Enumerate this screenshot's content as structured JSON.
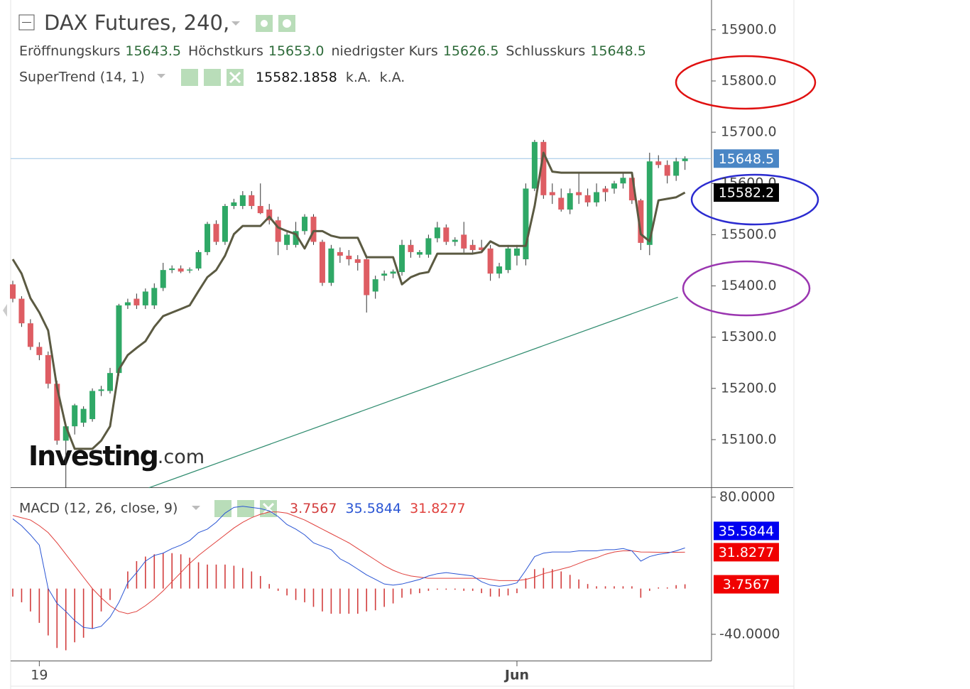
{
  "chart_data": [
    {
      "type": "candlestick",
      "title": "DAX Futures, 240,",
      "legend_fields": [
        "Eröffnungskurs",
        "Höchstkurs",
        "niedrigster Kurs",
        "Schlusskurs"
      ],
      "legend_values": [
        "15643.5",
        "15653.0",
        "15626.5",
        "15648.5"
      ],
      "watermark": {
        "brand": "Investing",
        "suffix": ".com"
      },
      "up_color": "#2fa866",
      "down_color": "#de5d63",
      "wick_color": "#333333",
      "price_line_color": "#9cc3e6",
      "xlim": [
        -0.24,
        79
      ],
      "xticks": [
        {
          "value": 3,
          "label": "19"
        },
        {
          "value": 57,
          "label": "Jun"
        }
      ],
      "ylim": [
        15007,
        15958
      ],
      "yticks": [
        {
          "value": 15100,
          "label": "15100.0"
        },
        {
          "value": 15200,
          "label": "15200.0"
        },
        {
          "value": 15300,
          "label": "15300.0"
        },
        {
          "value": 15400,
          "label": "15400.0"
        },
        {
          "value": 15500,
          "label": "15500.0"
        },
        {
          "value": 15600,
          "label": "15600.0"
        },
        {
          "value": 15700,
          "label": "15700.0"
        },
        {
          "value": 15800,
          "label": "15800.0"
        },
        {
          "value": 15900,
          "label": "15900.0"
        }
      ],
      "open": [
        15403,
        15375,
        15327,
        15281,
        15265,
        15209,
        15098,
        15126,
        15133,
        15140,
        15195,
        15195,
        15230,
        15362,
        15375,
        15362,
        15362,
        15396,
        15431,
        15434,
        15430,
        15434,
        15466,
        15521,
        15486,
        15556,
        15556,
        15577,
        15556,
        15549,
        15528,
        15480,
        15480,
        15507,
        15535,
        15486,
        15406,
        15466,
        15459,
        15452,
        15452,
        15389,
        15420,
        15424,
        15427,
        15480,
        15461,
        15461,
        15493,
        15514,
        15486,
        15500,
        15480,
        15475,
        15473,
        15424,
        15431,
        15459,
        15452,
        15590,
        15681,
        15583,
        15572,
        15549,
        15583,
        15577,
        15563,
        15590,
        15590,
        15600,
        15611,
        15567,
        15480,
        15643,
        15636,
        15615,
        15643.5
      ],
      "high": [
        15410,
        15380,
        15335,
        15290,
        15272,
        15215,
        15130,
        15170,
        15165,
        15200,
        15205,
        15240,
        15365,
        15375,
        15385,
        15395,
        15405,
        15445,
        15440,
        15440,
        15436,
        15470,
        15525,
        15528,
        15560,
        15570,
        15585,
        15585,
        15600,
        15560,
        15535,
        15505,
        15525,
        15540,
        15540,
        15490,
        15480,
        15475,
        15470,
        15460,
        15460,
        15420,
        15430,
        15432,
        15490,
        15490,
        15470,
        15500,
        15525,
        15520,
        15495,
        15525,
        15490,
        15490,
        15480,
        15445,
        15480,
        15480,
        15600,
        15685,
        15685,
        15600,
        15590,
        15590,
        15620,
        15590,
        15600,
        15595,
        15605,
        15620,
        15615,
        15570,
        15660,
        15655,
        15645,
        15650,
        15653
      ],
      "low": [
        15368,
        15320,
        15275,
        15255,
        15200,
        15090,
        15006,
        15110,
        15125,
        15135,
        15185,
        15190,
        15225,
        15355,
        15355,
        15355,
        15355,
        15390,
        15425,
        15425,
        15425,
        15430,
        15460,
        15480,
        15480,
        15550,
        15550,
        15550,
        15540,
        15520,
        15460,
        15470,
        15475,
        15500,
        15480,
        15400,
        15400,
        15445,
        15440,
        15430,
        15348,
        15375,
        15410,
        15415,
        15420,
        15455,
        15455,
        15455,
        15485,
        15480,
        15478,
        15465,
        15465,
        15465,
        15410,
        15415,
        15425,
        15440,
        15440,
        15585,
        15570,
        15560,
        15545,
        15540,
        15560,
        15555,
        15555,
        15565,
        15580,
        15590,
        15560,
        15470,
        15460,
        15630,
        15600,
        15605,
        15626.5
      ],
      "close": [
        15375,
        15327,
        15281,
        15265,
        15209,
        15098,
        15126,
        15167,
        15160,
        15195,
        15198,
        15230,
        15362,
        15368,
        15362,
        15389,
        15396,
        15431,
        15434,
        15428,
        15432,
        15466,
        15521,
        15486,
        15556,
        15563,
        15577,
        15556,
        15542,
        15528,
        15486,
        15500,
        15507,
        15535,
        15486,
        15406,
        15473,
        15459,
        15452,
        15445,
        15382,
        15413,
        15424,
        15428,
        15480,
        15466,
        15466,
        15493,
        15514,
        15486,
        15490,
        15473,
        15470,
        15470,
        15424,
        15438,
        15473,
        15473,
        15590,
        15681,
        15577,
        15577,
        15549,
        15581,
        15577,
        15563,
        15583,
        15583,
        15600,
        15611,
        15567,
        15484,
        15643,
        15636,
        15615,
        15643,
        15648.5
      ],
      "overlays": [
        {
          "name": "SuperTrend (14, 1)",
          "color": "#5b5a42",
          "values": [
            15452,
            15424,
            15376,
            15348,
            15313,
            15202,
            15126,
            15082,
            15082,
            15082,
            15098,
            15126,
            15237,
            15265,
            15279,
            15292,
            15320,
            15341,
            15348,
            15355,
            15362,
            15390,
            15417,
            15431,
            15459,
            15501,
            15517,
            15517,
            15517,
            15535,
            15514,
            15507,
            15501,
            15473,
            15507,
            15507,
            15498,
            15494,
            15494,
            15494,
            15456,
            15456,
            15456,
            15456,
            15403,
            15417,
            15424,
            15427,
            15463,
            15463,
            15463,
            15463,
            15463,
            15466,
            15487,
            15478,
            15478,
            15478,
            15478,
            15556,
            15660,
            15623,
            15621,
            15621,
            15621,
            15621,
            15621,
            15621,
            15621,
            15621,
            15621,
            15501,
            15487,
            15567,
            15570,
            15573,
            15582.1858
          ],
          "status": [
            "k.A.",
            "k.A."
          ],
          "last_label": "15582.2"
        }
      ],
      "trendline": {
        "color": "#2e8b6e",
        "x": [
          15.4,
          75.2
        ],
        "y": [
          15006,
          15378
        ]
      }
    },
    {
      "type": "macd",
      "title": "MACD (12, 26, close, 9)",
      "xlim": [
        -0.24,
        79
      ],
      "ylim": [
        -63,
        88
      ],
      "yticks": [
        {
          "value": 80,
          "label": "80.0000"
        },
        {
          "value": -40,
          "label": "-40.0000"
        }
      ],
      "histogram": {
        "color": "#d23c3c",
        "values": [
          -7,
          -12,
          -20,
          -30,
          -41,
          -52,
          -54,
          -47,
          -43,
          -35,
          -20,
          -10,
          0,
          15,
          24,
          28,
          30,
          31,
          31,
          30,
          27,
          23,
          21,
          21,
          21,
          20,
          18,
          15,
          11,
          4,
          -2,
          -6,
          -10,
          -12,
          -16,
          -20,
          -22,
          -22,
          -22,
          -22,
          -20,
          -19,
          -16,
          -13,
          -8,
          -5,
          -4,
          -2,
          -1,
          -1,
          -1,
          -2,
          -2,
          -4,
          -7,
          -7,
          -6,
          -4,
          9,
          17,
          18,
          17,
          15,
          12,
          8,
          4,
          2,
          2,
          2,
          2,
          2,
          -8,
          -2,
          1,
          1,
          3,
          3.7567
        ]
      },
      "macd": {
        "color": "#2a55d4",
        "values": [
          61,
          55,
          47,
          38,
          0,
          -13,
          -20,
          -28,
          -34,
          -35,
          -33,
          -25,
          -12,
          5,
          14,
          24,
          29,
          31,
          35,
          38,
          42,
          49,
          52,
          58,
          66,
          71,
          72,
          71,
          70,
          68,
          63,
          56,
          52,
          47,
          40,
          37,
          34,
          26,
          22,
          17,
          12,
          8,
          4,
          3,
          4,
          6,
          8,
          11,
          13,
          14,
          13,
          12,
          11,
          6,
          3,
          2,
          3,
          5,
          16,
          28,
          31,
          32,
          32,
          32,
          33,
          33,
          33,
          34,
          34,
          35,
          33,
          24,
          28,
          30,
          31,
          33,
          35.5844
        ]
      },
      "signal": {
        "color": "#e0403c",
        "values": [
          64,
          62,
          60,
          55,
          49,
          40,
          30,
          20,
          10,
          0,
          -8,
          -15,
          -20,
          -22,
          -20,
          -15,
          -9,
          -2,
          6,
          14,
          22,
          29,
          35,
          41,
          47,
          53,
          58,
          62,
          65,
          67,
          67,
          66,
          63,
          60,
          56,
          52,
          48,
          44,
          40,
          35,
          30,
          25,
          20,
          16,
          13,
          11,
          10,
          9,
          9,
          9,
          9,
          9,
          9,
          9,
          8,
          7,
          7,
          7,
          8,
          10,
          13,
          15,
          17,
          19,
          22,
          25,
          27,
          30,
          32,
          33,
          33,
          32,
          31.9,
          31.8,
          31.8,
          31.8,
          31.8277
        ]
      }
    }
  ]
}
